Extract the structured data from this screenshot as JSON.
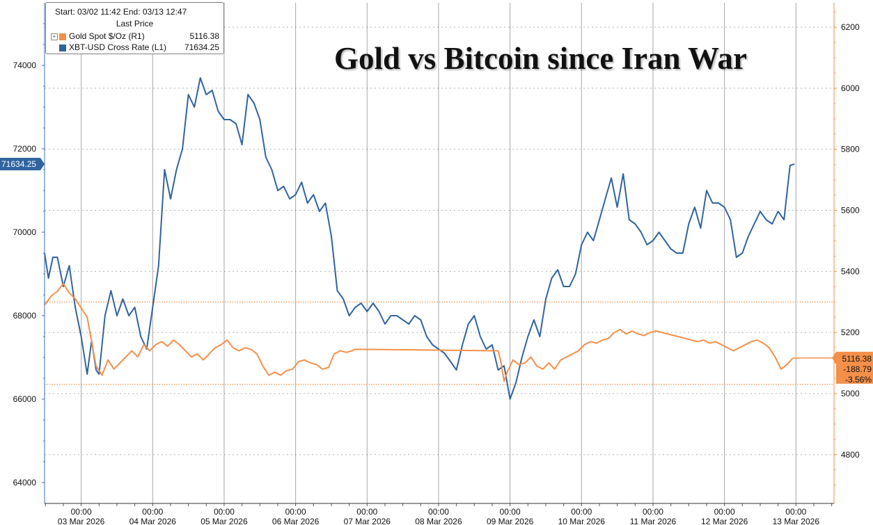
{
  "legend": {
    "range": "Start: 03/02 11:42 End: 03/13 12:47",
    "header": "Last Price",
    "gold_label": "Gold Spot $/Oz  (R1)",
    "gold_value": "5116.38",
    "btc_label": "XBT-USD Cross Rate  (L1)",
    "btc_value": "71634.25"
  },
  "colors": {
    "gold": "#f4904a",
    "btc": "#2f64a0",
    "grid": "#cfcfcf",
    "axis": "#3a72b2"
  },
  "chart_data": {
    "type": "line",
    "title": "Gold vs Bitcoin since Iran War",
    "x_tick_labels": [
      {
        "time": "00:00",
        "date": "03 Mar 2026"
      },
      {
        "time": "00:00",
        "date": "04 Mar 2026"
      },
      {
        "time": "00:00",
        "date": "05 Mar 2026"
      },
      {
        "time": "00:00",
        "date": "06 Mar 2026"
      },
      {
        "time": "00:00",
        "date": "07 Mar 2026"
      },
      {
        "time": "00:00",
        "date": "08 Mar 2026"
      },
      {
        "time": "00:00",
        "date": "09 Mar 2026"
      },
      {
        "time": "00:00",
        "date": "10 Mar 2026"
      },
      {
        "time": "00:00",
        "date": "11 Mar 2026"
      },
      {
        "time": "00:00",
        "date": "12 Mar 2026"
      },
      {
        "time": "00:00",
        "date": "13 Mar 2026"
      }
    ],
    "xlim": [
      "2026-03-02 11:42",
      "2026-03-13 12:47"
    ],
    "left_axis": {
      "ylim": [
        63500,
        75500
      ],
      "ticks": [
        64000,
        66000,
        68000,
        70000,
        72000,
        74000
      ]
    },
    "right_axis": {
      "ylim": [
        4640,
        6280
      ],
      "ticks": [
        4800,
        5000,
        5200,
        5400,
        5600,
        5800,
        6000,
        6200
      ]
    },
    "reference_lines_right": [
      5300,
      5030
    ],
    "series": [
      {
        "name": "XBT-USD Cross Rate",
        "axis": "left",
        "points": [
          [
            "2026-03-02 11:42",
            69500
          ],
          [
            "2026-03-02 13:00",
            68900
          ],
          [
            "2026-03-02 14:30",
            69400
          ],
          [
            "2026-03-02 16:00",
            69400
          ],
          [
            "2026-03-02 18:00",
            68700
          ],
          [
            "2026-03-02 20:00",
            69200
          ],
          [
            "2026-03-02 22:00",
            68200
          ],
          [
            "2026-03-03 00:00",
            67500
          ],
          [
            "2026-03-03 02:00",
            66600
          ],
          [
            "2026-03-03 03:30",
            67400
          ],
          [
            "2026-03-03 05:00",
            66700
          ],
          [
            "2026-03-03 06:00",
            66600
          ],
          [
            "2026-03-03 08:00",
            68000
          ],
          [
            "2026-03-03 10:00",
            68600
          ],
          [
            "2026-03-03 12:00",
            68000
          ],
          [
            "2026-03-03 14:00",
            68400
          ],
          [
            "2026-03-03 16:00",
            68000
          ],
          [
            "2026-03-03 18:00",
            68200
          ],
          [
            "2026-03-03 20:00",
            67500
          ],
          [
            "2026-03-03 22:00",
            67200
          ],
          [
            "2026-03-04 00:00",
            68200
          ],
          [
            "2026-03-04 02:00",
            69200
          ],
          [
            "2026-03-04 04:00",
            71500
          ],
          [
            "2026-03-04 06:00",
            70800
          ],
          [
            "2026-03-04 08:00",
            71500
          ],
          [
            "2026-03-04 10:00",
            72000
          ],
          [
            "2026-03-04 12:00",
            73300
          ],
          [
            "2026-03-04 14:00",
            73000
          ],
          [
            "2026-03-04 16:00",
            73700
          ],
          [
            "2026-03-04 18:00",
            73300
          ],
          [
            "2026-03-04 20:00",
            73400
          ],
          [
            "2026-03-04 22:00",
            72900
          ],
          [
            "2026-03-05 00:00",
            72700
          ],
          [
            "2026-03-05 02:00",
            72700
          ],
          [
            "2026-03-05 04:00",
            72600
          ],
          [
            "2026-03-05 06:00",
            72100
          ],
          [
            "2026-03-05 08:00",
            73300
          ],
          [
            "2026-03-05 10:00",
            73100
          ],
          [
            "2026-03-05 12:00",
            72700
          ],
          [
            "2026-03-05 14:00",
            71800
          ],
          [
            "2026-03-05 16:00",
            71500
          ],
          [
            "2026-03-05 18:00",
            71000
          ],
          [
            "2026-03-05 20:00",
            71100
          ],
          [
            "2026-03-05 22:00",
            70800
          ],
          [
            "2026-03-06 00:00",
            70900
          ],
          [
            "2026-03-06 02:00",
            71200
          ],
          [
            "2026-03-06 04:00",
            70700
          ],
          [
            "2026-03-06 06:00",
            70900
          ],
          [
            "2026-03-06 08:00",
            70500
          ],
          [
            "2026-03-06 10:00",
            70700
          ],
          [
            "2026-03-06 12:00",
            69900
          ],
          [
            "2026-03-06 14:00",
            68600
          ],
          [
            "2026-03-06 16:00",
            68400
          ],
          [
            "2026-03-06 18:00",
            68000
          ],
          [
            "2026-03-06 20:00",
            68200
          ],
          [
            "2026-03-06 22:00",
            68300
          ],
          [
            "2026-03-07 00:00",
            68100
          ],
          [
            "2026-03-07 02:00",
            68300
          ],
          [
            "2026-03-07 04:00",
            68100
          ],
          [
            "2026-03-07 06:00",
            67800
          ],
          [
            "2026-03-07 08:00",
            68000
          ],
          [
            "2026-03-07 10:00",
            68000
          ],
          [
            "2026-03-07 12:00",
            67900
          ],
          [
            "2026-03-07 14:00",
            67800
          ],
          [
            "2026-03-07 16:00",
            68000
          ],
          [
            "2026-03-07 18:00",
            67900
          ],
          [
            "2026-03-07 20:00",
            67500
          ],
          [
            "2026-03-07 22:00",
            67300
          ],
          [
            "2026-03-08 00:00",
            67200
          ],
          [
            "2026-03-08 02:00",
            67100
          ],
          [
            "2026-03-08 04:00",
            66900
          ],
          [
            "2026-03-08 06:00",
            66700
          ],
          [
            "2026-03-08 08:00",
            67300
          ],
          [
            "2026-03-08 10:00",
            67800
          ],
          [
            "2026-03-08 12:00",
            68000
          ],
          [
            "2026-03-08 14:00",
            67500
          ],
          [
            "2026-03-08 16:00",
            67200
          ],
          [
            "2026-03-08 18:00",
            67300
          ],
          [
            "2026-03-08 20:00",
            66700
          ],
          [
            "2026-03-08 22:00",
            66800
          ],
          [
            "2026-03-09 00:00",
            66000
          ],
          [
            "2026-03-09 02:00",
            66400
          ],
          [
            "2026-03-09 04:00",
            67000
          ],
          [
            "2026-03-09 06:00",
            67500
          ],
          [
            "2026-03-09 08:00",
            67900
          ],
          [
            "2026-03-09 10:00",
            67500
          ],
          [
            "2026-03-09 12:00",
            68400
          ],
          [
            "2026-03-09 14:00",
            68900
          ],
          [
            "2026-03-09 16:00",
            69100
          ],
          [
            "2026-03-09 18:00",
            68700
          ],
          [
            "2026-03-09 20:00",
            68700
          ],
          [
            "2026-03-09 22:00",
            69000
          ],
          [
            "2026-03-10 00:00",
            69700
          ],
          [
            "2026-03-10 02:00",
            70000
          ],
          [
            "2026-03-10 04:00",
            69800
          ],
          [
            "2026-03-10 06:00",
            70300
          ],
          [
            "2026-03-10 08:00",
            70800
          ],
          [
            "2026-03-10 10:00",
            71300
          ],
          [
            "2026-03-10 12:00",
            70600
          ],
          [
            "2026-03-10 14:00",
            71400
          ],
          [
            "2026-03-10 16:00",
            70300
          ],
          [
            "2026-03-10 18:00",
            70200
          ],
          [
            "2026-03-10 20:00",
            70000
          ],
          [
            "2026-03-10 22:00",
            69700
          ],
          [
            "2026-03-11 00:00",
            69800
          ],
          [
            "2026-03-11 02:00",
            70000
          ],
          [
            "2026-03-11 04:00",
            69800
          ],
          [
            "2026-03-11 06:00",
            69600
          ],
          [
            "2026-03-11 08:00",
            69500
          ],
          [
            "2026-03-11 10:00",
            69500
          ],
          [
            "2026-03-11 12:00",
            70200
          ],
          [
            "2026-03-11 14:00",
            70600
          ],
          [
            "2026-03-11 16:00",
            70100
          ],
          [
            "2026-03-11 18:00",
            71000
          ],
          [
            "2026-03-11 20:00",
            70700
          ],
          [
            "2026-03-11 22:00",
            70700
          ],
          [
            "2026-03-12 00:00",
            70600
          ],
          [
            "2026-03-12 02:00",
            70300
          ],
          [
            "2026-03-12 04:00",
            69400
          ],
          [
            "2026-03-12 06:00",
            69500
          ],
          [
            "2026-03-12 08:00",
            69900
          ],
          [
            "2026-03-12 10:00",
            70200
          ],
          [
            "2026-03-12 12:00",
            70500
          ],
          [
            "2026-03-12 14:00",
            70300
          ],
          [
            "2026-03-12 16:00",
            70200
          ],
          [
            "2026-03-12 18:00",
            70500
          ],
          [
            "2026-03-12 20:00",
            70300
          ],
          [
            "2026-03-12 22:00",
            71600
          ],
          [
            "2026-03-12 23:30",
            71634.25
          ]
        ]
      },
      {
        "name": "Gold Spot $/Oz",
        "axis": "right",
        "points": [
          [
            "2026-03-02 11:42",
            5290
          ],
          [
            "2026-03-02 14:00",
            5320
          ],
          [
            "2026-03-02 16:00",
            5335
          ],
          [
            "2026-03-02 18:00",
            5360
          ],
          [
            "2026-03-02 20:00",
            5330
          ],
          [
            "2026-03-02 22:00",
            5310
          ],
          [
            "2026-03-03 00:00",
            5280
          ],
          [
            "2026-03-03 02:00",
            5250
          ],
          [
            "2026-03-03 03:30",
            5170
          ],
          [
            "2026-03-03 05:00",
            5090
          ],
          [
            "2026-03-03 07:00",
            5060
          ],
          [
            "2026-03-03 09:00",
            5110
          ],
          [
            "2026-03-03 11:00",
            5080
          ],
          [
            "2026-03-03 13:00",
            5100
          ],
          [
            "2026-03-03 15:00",
            5120
          ],
          [
            "2026-03-03 17:00",
            5140
          ],
          [
            "2026-03-03 19:00",
            5120
          ],
          [
            "2026-03-03 21:00",
            5160
          ],
          [
            "2026-03-03 23:00",
            5140
          ],
          [
            "2026-03-04 01:00",
            5160
          ],
          [
            "2026-03-04 03:00",
            5170
          ],
          [
            "2026-03-04 05:00",
            5155
          ],
          [
            "2026-03-04 07:00",
            5175
          ],
          [
            "2026-03-04 09:00",
            5160
          ],
          [
            "2026-03-04 11:00",
            5140
          ],
          [
            "2026-03-04 13:00",
            5120
          ],
          [
            "2026-03-04 15:00",
            5130
          ],
          [
            "2026-03-04 17:00",
            5110
          ],
          [
            "2026-03-04 19:00",
            5130
          ],
          [
            "2026-03-04 21:00",
            5150
          ],
          [
            "2026-03-04 23:00",
            5160
          ],
          [
            "2026-03-05 01:00",
            5175
          ],
          [
            "2026-03-05 03:00",
            5150
          ],
          [
            "2026-03-05 05:00",
            5140
          ],
          [
            "2026-03-05 07:00",
            5150
          ],
          [
            "2026-03-05 09:00",
            5145
          ],
          [
            "2026-03-05 11:00",
            5130
          ],
          [
            "2026-03-05 13:00",
            5090
          ],
          [
            "2026-03-05 15:00",
            5060
          ],
          [
            "2026-03-05 17:00",
            5070
          ],
          [
            "2026-03-05 19:00",
            5060
          ],
          [
            "2026-03-05 21:00",
            5075
          ],
          [
            "2026-03-05 23:00",
            5080
          ],
          [
            "2026-03-06 01:00",
            5105
          ],
          [
            "2026-03-06 03:00",
            5110
          ],
          [
            "2026-03-06 05:00",
            5100
          ],
          [
            "2026-03-06 07:00",
            5095
          ],
          [
            "2026-03-06 09:00",
            5080
          ],
          [
            "2026-03-06 11:00",
            5085
          ],
          [
            "2026-03-06 13:00",
            5130
          ],
          [
            "2026-03-06 15:00",
            5140
          ],
          [
            "2026-03-06 17:00",
            5135
          ],
          [
            "2026-03-06 19:00",
            5140
          ],
          [
            "2026-03-06 20:00",
            5145
          ],
          [
            "2026-03-08 20:00",
            5140
          ],
          [
            "2026-03-08 21:00",
            5100
          ],
          [
            "2026-03-08 22:00",
            5040
          ],
          [
            "2026-03-08 23:00",
            5070
          ],
          [
            "2026-03-09 01:00",
            5110
          ],
          [
            "2026-03-09 03:00",
            5095
          ],
          [
            "2026-03-09 05:00",
            5100
          ],
          [
            "2026-03-09 07:00",
            5120
          ],
          [
            "2026-03-09 09:00",
            5090
          ],
          [
            "2026-03-09 11:00",
            5080
          ],
          [
            "2026-03-09 13:00",
            5100
          ],
          [
            "2026-03-09 15:00",
            5080
          ],
          [
            "2026-03-09 17:00",
            5110
          ],
          [
            "2026-03-09 19:00",
            5120
          ],
          [
            "2026-03-09 21:00",
            5130
          ],
          [
            "2026-03-09 23:00",
            5140
          ],
          [
            "2026-03-10 01:00",
            5160
          ],
          [
            "2026-03-10 03:00",
            5170
          ],
          [
            "2026-03-10 05:00",
            5165
          ],
          [
            "2026-03-10 07:00",
            5175
          ],
          [
            "2026-03-10 09:00",
            5180
          ],
          [
            "2026-03-10 11:00",
            5200
          ],
          [
            "2026-03-10 13:00",
            5210
          ],
          [
            "2026-03-10 15:00",
            5195
          ],
          [
            "2026-03-10 17:00",
            5205
          ],
          [
            "2026-03-10 19:00",
            5195
          ],
          [
            "2026-03-10 21:00",
            5190
          ],
          [
            "2026-03-10 23:00",
            5200
          ],
          [
            "2026-03-11 01:00",
            5205
          ],
          [
            "2026-03-11 03:00",
            5200
          ],
          [
            "2026-03-11 05:00",
            5195
          ],
          [
            "2026-03-11 07:00",
            5190
          ],
          [
            "2026-03-11 09:00",
            5185
          ],
          [
            "2026-03-11 11:00",
            5180
          ],
          [
            "2026-03-11 13:00",
            5175
          ],
          [
            "2026-03-11 15:00",
            5170
          ],
          [
            "2026-03-11 17:00",
            5175
          ],
          [
            "2026-03-11 19:00",
            5165
          ],
          [
            "2026-03-11 21:00",
            5170
          ],
          [
            "2026-03-11 23:00",
            5160
          ],
          [
            "2026-03-12 01:00",
            5150
          ],
          [
            "2026-03-12 03:00",
            5140
          ],
          [
            "2026-03-12 05:00",
            5150
          ],
          [
            "2026-03-12 07:00",
            5160
          ],
          [
            "2026-03-12 09:00",
            5170
          ],
          [
            "2026-03-12 11:00",
            5175
          ],
          [
            "2026-03-12 13:00",
            5165
          ],
          [
            "2026-03-12 15:00",
            5150
          ],
          [
            "2026-03-12 17:00",
            5120
          ],
          [
            "2026-03-12 19:00",
            5080
          ],
          [
            "2026-03-12 21:00",
            5095
          ],
          [
            "2026-03-12 23:00",
            5116.38
          ]
        ]
      }
    ],
    "gold_tags": {
      "last": "5116.38",
      "change": "-188.79",
      "pct": "-3.56%"
    },
    "btc_tag": "71634.25"
  }
}
